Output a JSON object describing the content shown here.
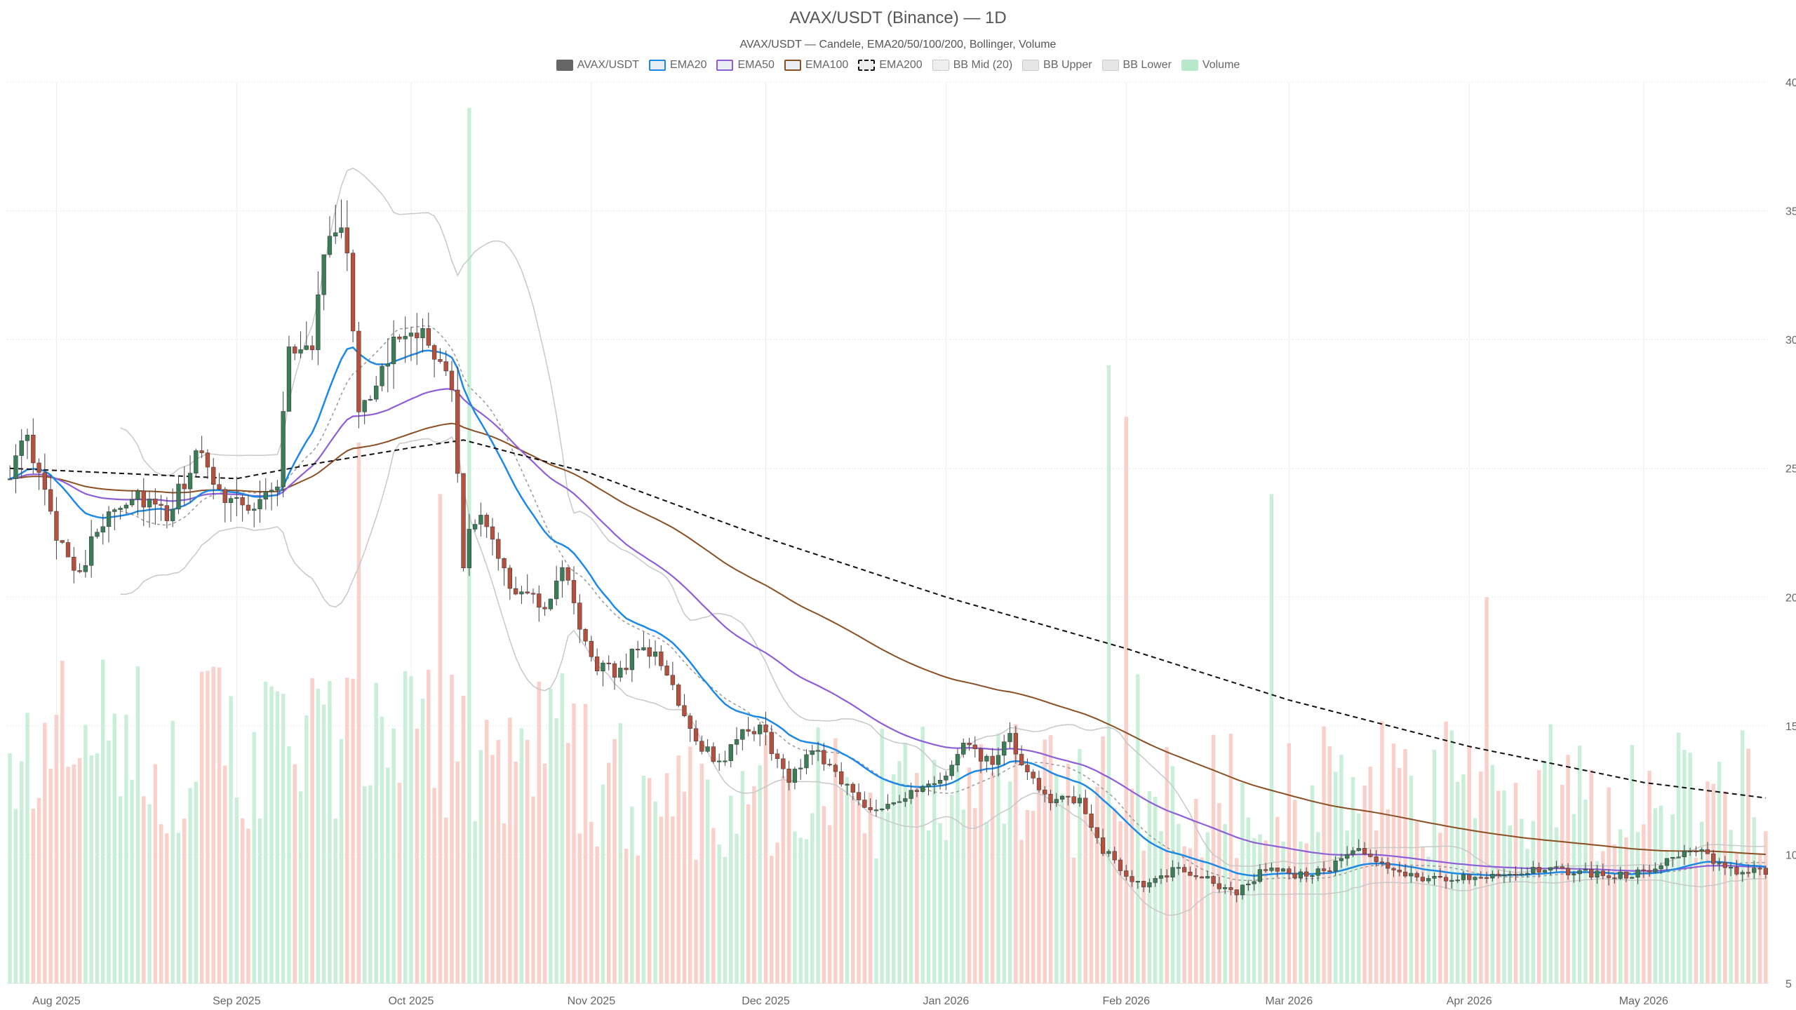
{
  "chart_data": {
    "type": "candlestick",
    "title": "AVAX/USDT (Binance) — 1D",
    "subtitle": "AVAX/USDT — Candele, EMA20/50/100/200, Bollinger, Volume",
    "legend": [
      {
        "name": "AVAX/USDT",
        "color": "#666666",
        "style": "solid"
      },
      {
        "name": "EMA20",
        "color": "#1e88e5",
        "style": "outline"
      },
      {
        "name": "EMA50",
        "color": "#8e5ed8",
        "style": "outline"
      },
      {
        "name": "EMA100",
        "color": "#8b4f24",
        "style": "outline"
      },
      {
        "name": "EMA200",
        "color": "#111111",
        "style": "dashed"
      },
      {
        "name": "BB Mid (20)",
        "color": "#aaaaaa",
        "style": "dotted"
      },
      {
        "name": "BB Upper",
        "color": "#cccccc",
        "style": "light"
      },
      {
        "name": "BB Lower",
        "color": "#cccccc",
        "style": "light"
      },
      {
        "name": "Volume",
        "color": "#b8e8cc",
        "style": "fill"
      }
    ],
    "x_axis": {
      "start_date": "2025-07-24",
      "end_date": "2026-05-22",
      "tick_labels": [
        "Aug 2025",
        "Sep 2025",
        "Oct 2025",
        "Nov 2025",
        "Dec 2025",
        "Jan 2026",
        "Feb 2026",
        "Mar 2026",
        "Apr 2026",
        "May 2026"
      ],
      "tick_dates": [
        "2025-08-01",
        "2025-09-01",
        "2025-10-01",
        "2025-11-01",
        "2025-12-01",
        "2026-01-01",
        "2026-02-01",
        "2026-03-01",
        "2026-04-01",
        "2026-05-01"
      ]
    },
    "y_axis": {
      "position": "right",
      "ylim": [
        5,
        40
      ],
      "ticks": [
        5,
        10,
        15,
        20,
        25,
        30,
        35,
        40
      ]
    },
    "grid": true,
    "price_anchors": [
      [
        "2025-07-24",
        25.0
      ],
      [
        "2025-07-27",
        26.0
      ],
      [
        "2025-08-01",
        22.5
      ],
      [
        "2025-08-05",
        21.0
      ],
      [
        "2025-08-10",
        23.5
      ],
      [
        "2025-08-15",
        24.0
      ],
      [
        "2025-08-20",
        23.0
      ],
      [
        "2025-08-25",
        25.5
      ],
      [
        "2025-08-30",
        24.0
      ],
      [
        "2025-09-04",
        23.5
      ],
      [
        "2025-09-08",
        24.5
      ],
      [
        "2025-09-10",
        29.5
      ],
      [
        "2025-09-14",
        30.0
      ],
      [
        "2025-09-17",
        34.5
      ],
      [
        "2025-09-20",
        33.5
      ],
      [
        "2025-09-22",
        27.5
      ],
      [
        "2025-09-26",
        28.5
      ],
      [
        "2025-09-29",
        30.5
      ],
      [
        "2025-10-02",
        30.5
      ],
      [
        "2025-10-05",
        29.0
      ],
      [
        "2025-10-08",
        28.0
      ],
      [
        "2025-10-10",
        21.5
      ],
      [
        "2025-10-12",
        23.0
      ],
      [
        "2025-10-14",
        23.0
      ],
      [
        "2025-10-18",
        20.5
      ],
      [
        "2025-10-24",
        19.5
      ],
      [
        "2025-10-27",
        21.0
      ],
      [
        "2025-11-01",
        17.5
      ],
      [
        "2025-11-05",
        17.0
      ],
      [
        "2025-11-10",
        18.2
      ],
      [
        "2025-11-14",
        17.0
      ],
      [
        "2025-11-19",
        14.5
      ],
      [
        "2025-11-23",
        13.5
      ],
      [
        "2025-11-26",
        14.5
      ],
      [
        "2025-11-30",
        15.0
      ],
      [
        "2025-12-05",
        12.8
      ],
      [
        "2025-12-09",
        14.2
      ],
      [
        "2025-12-13",
        13.2
      ],
      [
        "2025-12-18",
        11.8
      ],
      [
        "2025-12-22",
        12.0
      ],
      [
        "2025-12-28",
        12.5
      ],
      [
        "2025-12-31",
        12.8
      ],
      [
        "2026-01-04",
        14.2
      ],
      [
        "2026-01-09",
        13.5
      ],
      [
        "2026-01-12",
        14.5
      ],
      [
        "2026-01-15",
        13.0
      ],
      [
        "2026-01-19",
        12.2
      ],
      [
        "2026-01-24",
        12.0
      ],
      [
        "2026-01-28",
        10.2
      ],
      [
        "2026-02-02",
        9.0
      ],
      [
        "2026-02-05",
        8.8
      ],
      [
        "2026-02-10",
        9.5
      ],
      [
        "2026-02-15",
        9.0
      ],
      [
        "2026-02-20",
        8.5
      ],
      [
        "2026-02-25",
        9.5
      ],
      [
        "2026-03-02",
        9.2
      ],
      [
        "2026-03-08",
        9.4
      ],
      [
        "2026-03-12",
        10.2
      ],
      [
        "2026-03-17",
        9.6
      ],
      [
        "2026-03-22",
        9.2
      ],
      [
        "2026-03-27",
        9.0
      ],
      [
        "2026-04-03",
        9.2
      ],
      [
        "2026-04-08",
        9.3
      ],
      [
        "2026-04-14",
        9.4
      ],
      [
        "2026-04-20",
        9.3
      ],
      [
        "2026-04-26",
        9.2
      ],
      [
        "2026-05-01",
        9.3
      ],
      [
        "2026-05-06",
        10.0
      ],
      [
        "2026-05-10",
        10.2
      ],
      [
        "2026-05-15",
        9.4
      ],
      [
        "2026-05-22",
        9.3
      ]
    ],
    "ema200_points": [
      [
        "2025-07-24",
        25.0
      ],
      [
        "2025-09-01",
        24.6
      ],
      [
        "2025-09-15",
        25.2
      ],
      [
        "2025-10-01",
        25.8
      ],
      [
        "2025-10-10",
        26.1
      ],
      [
        "2025-11-01",
        24.8
      ],
      [
        "2025-12-01",
        22.3
      ],
      [
        "2026-01-01",
        20.0
      ],
      [
        "2026-02-01",
        18.0
      ],
      [
        "2026-03-01",
        16.0
      ],
      [
        "2026-04-01",
        14.2
      ],
      [
        "2026-05-01",
        12.8
      ],
      [
        "2026-05-22",
        12.2
      ]
    ],
    "volume_spikes": [
      [
        "2025-10-11",
        34.0
      ],
      [
        "2026-01-29",
        24.0
      ],
      [
        "2026-02-01",
        22.0
      ],
      [
        "2026-02-03",
        12.0
      ],
      [
        "2026-02-26",
        19.0
      ],
      [
        "2026-04-04",
        15.0
      ],
      [
        "2025-09-22",
        21.0
      ],
      [
        "2025-10-06",
        19.0
      ]
    ],
    "annotations": []
  }
}
